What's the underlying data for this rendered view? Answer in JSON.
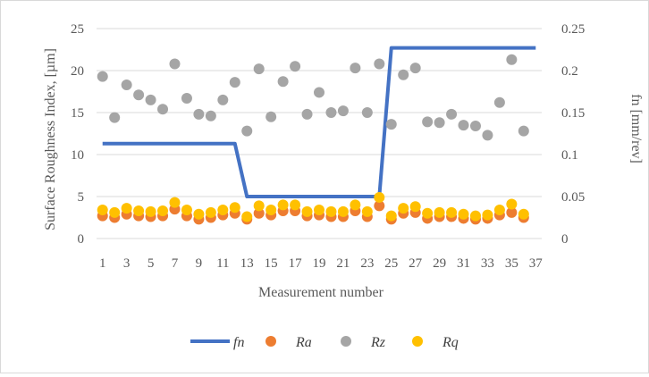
{
  "chart_data": {
    "type": "line+scatter",
    "xlabel": "Measurement number",
    "ylabel": "Surface Roughness Index, [µm]",
    "y2label": "fn [mm/rev]",
    "ylim": [
      0,
      25
    ],
    "y2lim": [
      0,
      0.25
    ],
    "yticks": [
      "0",
      "5",
      "10",
      "15",
      "20",
      "25"
    ],
    "y2ticks": [
      "0",
      "0.05",
      "0.1",
      "0.15",
      "0.2",
      "0.25"
    ],
    "categories": [
      1,
      2,
      3,
      4,
      5,
      6,
      7,
      8,
      9,
      10,
      11,
      12,
      13,
      14,
      15,
      16,
      17,
      18,
      19,
      20,
      21,
      22,
      23,
      24,
      25,
      26,
      27,
      28,
      29,
      30,
      31,
      32,
      33,
      34,
      35,
      36,
      37
    ],
    "xtick_labels": [
      "1",
      "3",
      "5",
      "7",
      "9",
      "11",
      "13",
      "15",
      "17",
      "19",
      "21",
      "23",
      "25",
      "27",
      "29",
      "31",
      "33",
      "35",
      "37"
    ],
    "legend_position": "bottom",
    "grid": true,
    "series": [
      {
        "name": "fn",
        "kind": "line",
        "axis": "right",
        "color": "#4472C4",
        "values": [
          0.113,
          0.113,
          0.113,
          0.113,
          0.113,
          0.113,
          0.113,
          0.113,
          0.113,
          0.113,
          0.113,
          0.113,
          0.05,
          0.05,
          0.05,
          0.05,
          0.05,
          0.05,
          0.05,
          0.05,
          0.05,
          0.05,
          0.05,
          0.05,
          0.227,
          0.227,
          0.227,
          0.227,
          0.227,
          0.227,
          0.227,
          0.227,
          0.227,
          0.227,
          0.227,
          0.227,
          0.227
        ]
      },
      {
        "name": "Ra",
        "kind": "scatter",
        "axis": "left",
        "color": "#ED7D31",
        "values": [
          2.7,
          2.5,
          2.9,
          2.7,
          2.6,
          2.7,
          3.5,
          2.7,
          2.3,
          2.5,
          2.8,
          3.0,
          2.3,
          3.0,
          2.8,
          3.3,
          3.3,
          2.7,
          2.8,
          2.6,
          2.6,
          3.3,
          2.6,
          3.9,
          2.3,
          3.0,
          3.1,
          2.4,
          2.6,
          2.6,
          2.4,
          2.3,
          2.4,
          2.8,
          3.1,
          2.5,
          null
        ]
      },
      {
        "name": "Rz",
        "kind": "scatter",
        "axis": "left",
        "color": "#A5A5A5",
        "values": [
          19.3,
          14.4,
          18.3,
          17.1,
          16.5,
          15.4,
          20.8,
          16.7,
          14.8,
          14.6,
          16.5,
          18.6,
          12.8,
          20.2,
          14.5,
          18.7,
          20.5,
          14.8,
          17.4,
          15.0,
          15.2,
          20.3,
          15.0,
          20.8,
          13.6,
          19.5,
          20.3,
          13.9,
          13.8,
          14.8,
          13.5,
          13.4,
          12.3,
          16.2,
          21.3,
          12.8,
          null
        ]
      },
      {
        "name": "Rq",
        "kind": "scatter",
        "axis": "left",
        "color": "#FFC000",
        "values": [
          3.4,
          3.1,
          3.6,
          3.3,
          3.2,
          3.3,
          4.3,
          3.4,
          2.9,
          3.1,
          3.4,
          3.7,
          2.6,
          3.9,
          3.4,
          4.0,
          4.0,
          3.2,
          3.4,
          3.2,
          3.2,
          4.0,
          3.2,
          4.9,
          2.7,
          3.6,
          3.8,
          3.0,
          3.1,
          3.1,
          2.9,
          2.7,
          2.8,
          3.4,
          4.1,
          2.9,
          null
        ]
      }
    ]
  }
}
